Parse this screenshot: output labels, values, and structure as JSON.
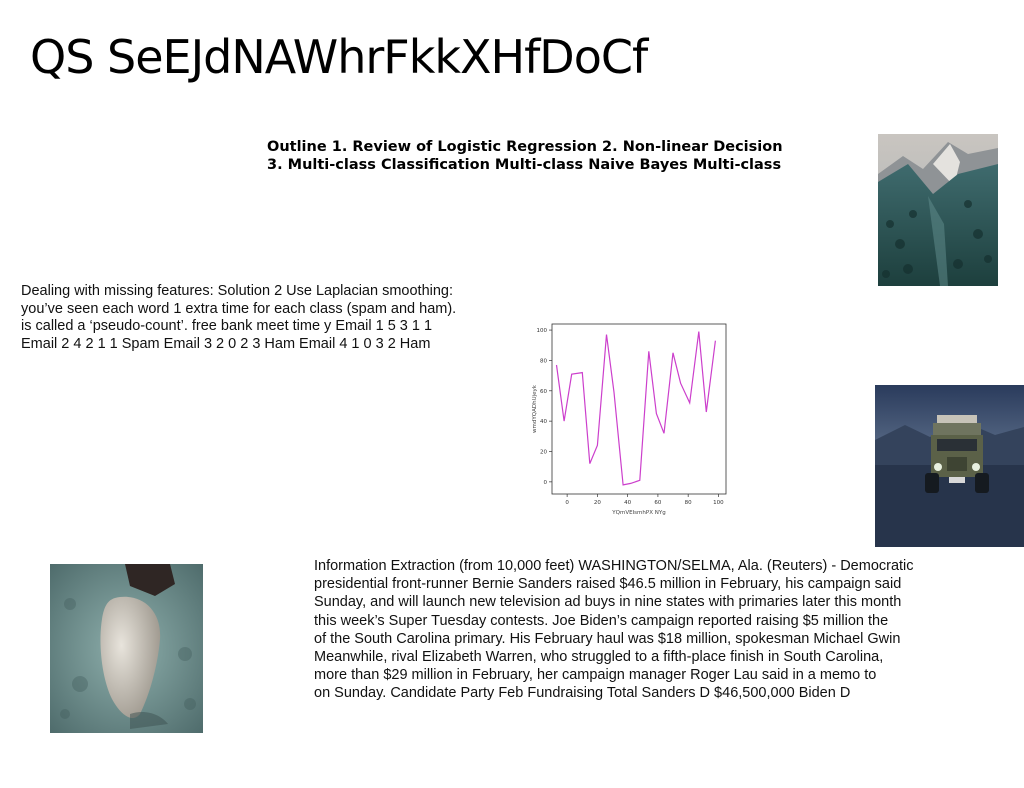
{
  "slide": {
    "title": "QS SeEJdNAWhrFkkXHfDoCf",
    "outline_lines": [
      "Outline 1. Review of Logistic Regression 2. Non-linear Decision",
      "3. Multi-class Classification Multi-class Naive Bayes Multi-class"
    ],
    "left_paragraph_lines": [
      "Dealing with missing features: Solution 2 Use Laplacian smoothing:",
      "you’ve seen each word 1 extra time for each class (spam and ham).",
      "is called a ‘pseudo-count’. free bank meet time y Email 1 5 3 1 1",
      "Email 2 4 2 1 1 Spam Email 3 2 0 2 3 Ham Email 4 1 0 3 2 Ham"
    ],
    "main_paragraph_lines": [
      "Information Extraction (from 10,000 feet) WASHINGTON/SELMA, Ala. (Reuters) - Democratic",
      "presidential front-runner Bernie Sanders raised $46.5 million in February, his campaign said",
      "Sunday, and will launch new television ad buys in nine states with primaries later this month",
      "this week’s Super Tuesday contests. Joe Biden’s campaign reported raising $5 million the",
      "of the South Carolina primary. His February haul was $18 million, spokesman Michael Gwin",
      "Meanwhile, rival Elizabeth Warren, who struggled to a fifth-place finish in South Carolina,",
      "more than $29 million in February, her campaign manager Roger Lau said in a memo to",
      "on Sunday. Candidate Party Feb Fundraising Total Sanders D $46,500,000 Biden D"
    ]
  },
  "chart_data": {
    "type": "line",
    "xlabel": "YQmVEIsmhPX NYg",
    "ylabel": "wmdYQADhUjeyk",
    "x": [
      -7,
      -2,
      3,
      10,
      15,
      20,
      26,
      31,
      37,
      42,
      48,
      54,
      59,
      64,
      70,
      75,
      81,
      87,
      92,
      98
    ],
    "values": [
      77,
      40,
      71,
      72,
      12,
      24,
      97,
      59,
      -2,
      -1,
      1,
      86,
      45,
      32,
      85,
      65,
      52,
      99,
      46,
      93
    ],
    "xticks": [
      0,
      20,
      40,
      60,
      80,
      100
    ],
    "yticks": [
      0,
      20,
      40,
      60,
      80,
      100
    ],
    "xlim": [
      -10,
      105
    ],
    "ylim": [
      -8,
      104
    ],
    "line_color": "#cc3fcc",
    "grid": false
  },
  "images": [
    {
      "name": "mountain-forest-photo"
    },
    {
      "name": "vintage-jeep-photo"
    },
    {
      "name": "stone-on-water-photo"
    }
  ]
}
